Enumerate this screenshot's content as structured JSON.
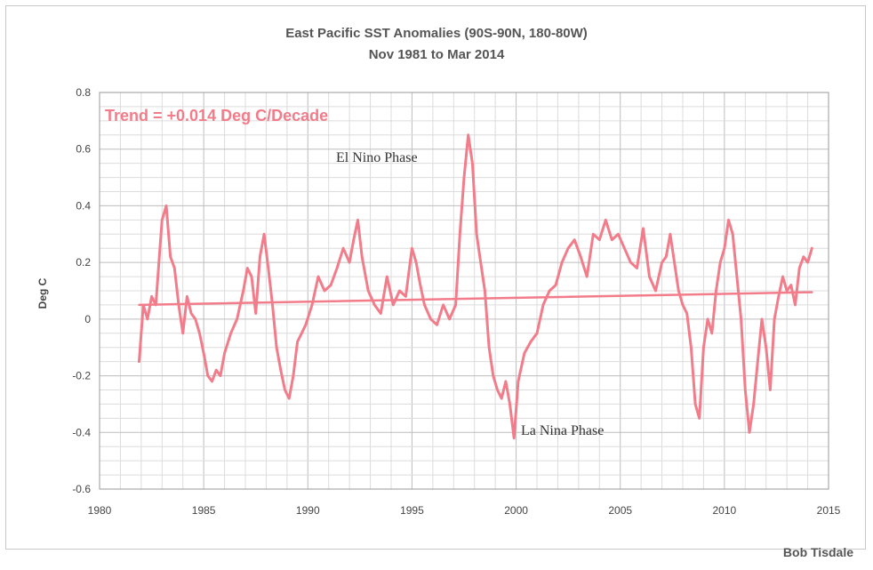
{
  "chart_data": {
    "type": "line",
    "title": "East Pacific SST Anomalies (90S-90N, 180-80W)",
    "subtitle": "Nov 1981 to Mar 2014",
    "xlabel": "",
    "ylabel": "Deg C",
    "xlim": [
      1980,
      2015
    ],
    "ylim": [
      -0.6,
      0.8
    ],
    "x_ticks": [
      1980,
      1985,
      1990,
      1995,
      2000,
      2005,
      2010,
      2015
    ],
    "y_ticks": [
      -0.6,
      -0.4,
      -0.2,
      0,
      0.2,
      0.4,
      0.6,
      0.8
    ],
    "grid": true,
    "series": [
      {
        "x": [
          1981.9,
          1982.1,
          1982.3,
          1982.5,
          1982.7,
          1982.9,
          1983.0,
          1983.2,
          1983.4,
          1983.6,
          1983.8,
          1984.0,
          1984.2,
          1984.4,
          1984.6,
          1984.8,
          1985.0,
          1985.2,
          1985.4,
          1985.6,
          1985.8,
          1986.0,
          1986.3,
          1986.6,
          1986.9,
          1987.1,
          1987.3,
          1987.5,
          1987.7,
          1987.9,
          1988.1,
          1988.3,
          1988.5,
          1988.7,
          1988.9,
          1989.1,
          1989.3,
          1989.5,
          1989.7,
          1989.9,
          1990.2,
          1990.5,
          1990.8,
          1991.1,
          1991.4,
          1991.7,
          1992.0,
          1992.2,
          1992.4,
          1992.6,
          1992.9,
          1993.2,
          1993.5,
          1993.8,
          1994.1,
          1994.4,
          1994.7,
          1995.0,
          1995.2,
          1995.4,
          1995.6,
          1995.9,
          1996.2,
          1996.5,
          1996.8,
          1997.1,
          1997.3,
          1997.5,
          1997.7,
          1997.9,
          1998.1,
          1998.3,
          1998.5,
          1998.7,
          1998.9,
          1999.1,
          1999.3,
          1999.5,
          1999.7,
          1999.9,
          2000.1,
          2000.4,
          2000.7,
          2001.0,
          2001.3,
          2001.6,
          2001.9,
          2002.2,
          2002.5,
          2002.8,
          2003.1,
          2003.4,
          2003.7,
          2004.0,
          2004.3,
          2004.6,
          2004.9,
          2005.2,
          2005.5,
          2005.8,
          2006.1,
          2006.4,
          2006.7,
          2007.0,
          2007.2,
          2007.4,
          2007.6,
          2007.8,
          2008.0,
          2008.2,
          2008.4,
          2008.6,
          2008.8,
          2009.0,
          2009.2,
          2009.4,
          2009.6,
          2009.8,
          2010.0,
          2010.2,
          2010.4,
          2010.6,
          2010.8,
          2011.0,
          2011.2,
          2011.4,
          2011.6,
          2011.8,
          2012.0,
          2012.2,
          2012.4,
          2012.6,
          2012.8,
          2013.0,
          2013.2,
          2013.4,
          2013.6,
          2013.8,
          2014.0,
          2014.2
        ],
        "y": [
          -0.15,
          0.05,
          0.0,
          0.08,
          0.05,
          0.25,
          0.35,
          0.4,
          0.22,
          0.18,
          0.05,
          -0.05,
          0.08,
          0.02,
          0.0,
          -0.05,
          -0.12,
          -0.2,
          -0.22,
          -0.18,
          -0.2,
          -0.12,
          -0.05,
          0.0,
          0.1,
          0.18,
          0.15,
          0.02,
          0.22,
          0.3,
          0.18,
          0.05,
          -0.1,
          -0.18,
          -0.25,
          -0.28,
          -0.2,
          -0.08,
          -0.05,
          -0.02,
          0.05,
          0.15,
          0.1,
          0.12,
          0.18,
          0.25,
          0.2,
          0.28,
          0.35,
          0.22,
          0.1,
          0.05,
          0.02,
          0.15,
          0.05,
          0.1,
          0.08,
          0.25,
          0.2,
          0.12,
          0.05,
          0.0,
          -0.02,
          0.05,
          0.0,
          0.05,
          0.3,
          0.5,
          0.65,
          0.55,
          0.3,
          0.2,
          0.1,
          -0.1,
          -0.2,
          -0.25,
          -0.28,
          -0.22,
          -0.3,
          -0.42,
          -0.22,
          -0.12,
          -0.08,
          -0.05,
          0.05,
          0.1,
          0.12,
          0.2,
          0.25,
          0.28,
          0.22,
          0.15,
          0.3,
          0.28,
          0.35,
          0.28,
          0.3,
          0.25,
          0.2,
          0.18,
          0.32,
          0.15,
          0.1,
          0.2,
          0.22,
          0.3,
          0.2,
          0.1,
          0.05,
          0.02,
          -0.1,
          -0.3,
          -0.35,
          -0.1,
          0.0,
          -0.05,
          0.1,
          0.2,
          0.25,
          0.35,
          0.3,
          0.15,
          0.0,
          -0.25,
          -0.4,
          -0.3,
          -0.15,
          0.0,
          -0.1,
          -0.25,
          0.0,
          0.08,
          0.15,
          0.1,
          0.12,
          0.05,
          0.18,
          0.22,
          0.2,
          0.25
        ]
      },
      {
        "x": [
          1981.9,
          2014.2
        ],
        "y": [
          0.05,
          0.095
        ]
      }
    ],
    "annotations": [
      "Trend = +0.014 Deg C/Decade",
      "El Nino Phase",
      "La Nina Phase"
    ],
    "color": "#f27c8a"
  },
  "credit": "Bob Tisdale"
}
